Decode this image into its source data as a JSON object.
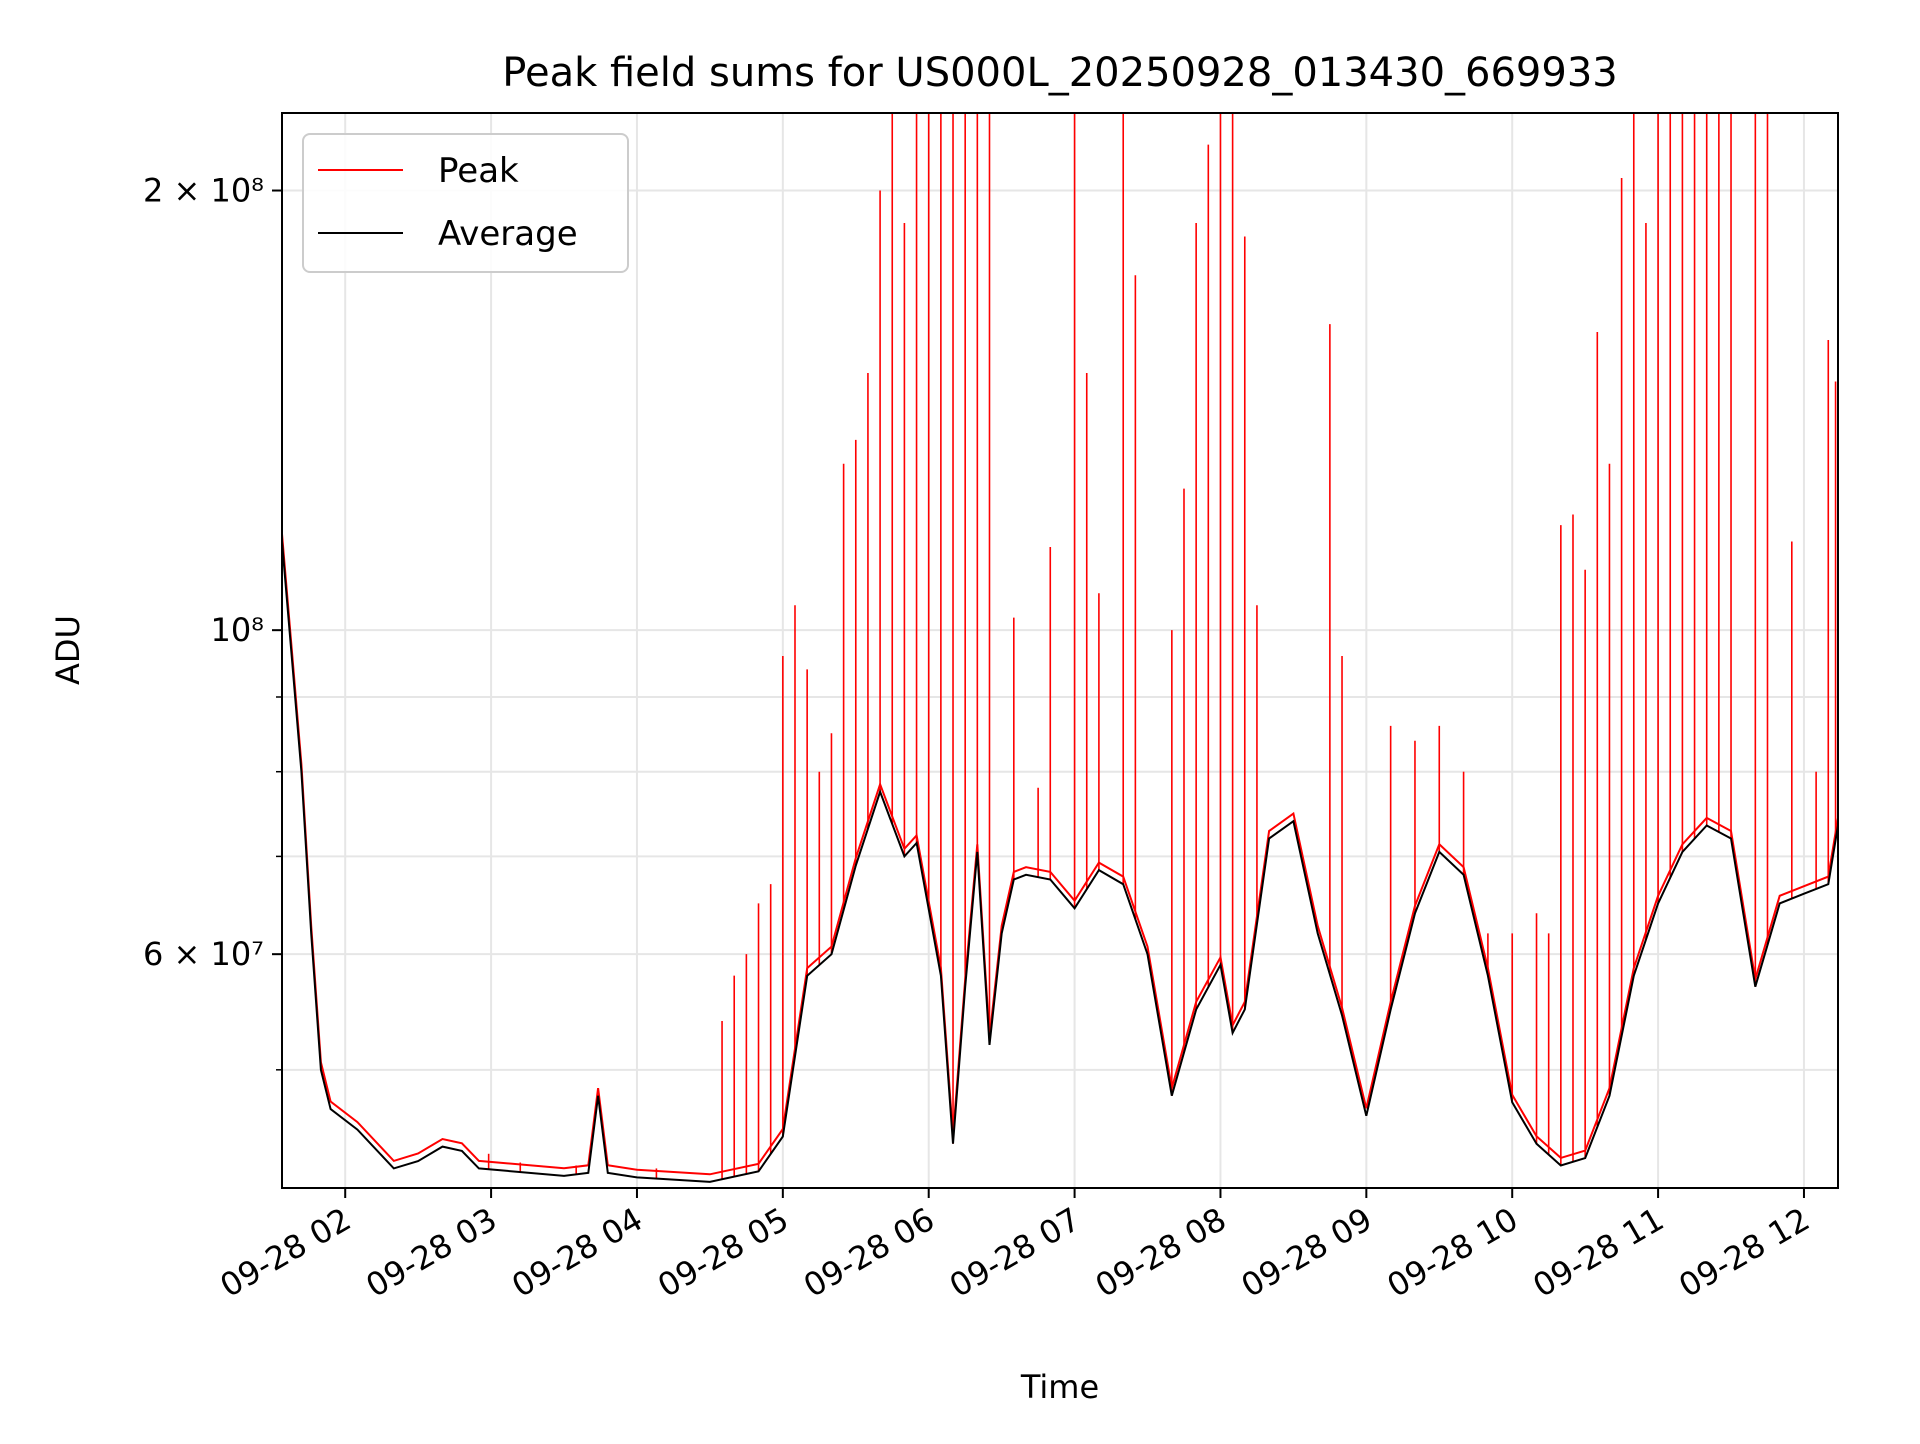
{
  "chart_data": {
    "type": "line",
    "title": "Peak field sums for US000L_20250928_013430_669933",
    "xlabel": "Time",
    "ylabel": "ADU",
    "y_scale": "log",
    "ylim": [
      41500000,
      226000000
    ],
    "xlim": [
      "2025-09-28 01:34",
      "2025-09-28 12:14"
    ],
    "grid": true,
    "legend_position": "top-left",
    "x_ticks": [
      "09-28 02",
      "09-28 03",
      "09-28 04",
      "09-28 05",
      "09-28 06",
      "09-28 07",
      "09-28 08",
      "09-28 09",
      "09-28 10",
      "09-28 11",
      "09-28 12"
    ],
    "x_tick_times": [
      "2025-09-28 02:00",
      "2025-09-28 03:00",
      "2025-09-28 04:00",
      "2025-09-28 05:00",
      "2025-09-28 06:00",
      "2025-09-28 07:00",
      "2025-09-28 08:00",
      "2025-09-28 09:00",
      "2025-09-28 10:00",
      "2025-09-28 11:00",
      "2025-09-28 12:00"
    ],
    "y_ticks": [
      {
        "value": 60000000,
        "label": "6 × 10⁷"
      },
      {
        "value": 100000000,
        "label": "10⁸"
      },
      {
        "value": 200000000,
        "label": "2 × 10⁸"
      }
    ],
    "y_minor_ticks": [
      50000000,
      70000000,
      80000000,
      90000000
    ],
    "colors": {
      "peak": "#ff0000",
      "average": "#000000",
      "grid": "#e6e6e6"
    },
    "series": [
      {
        "name": "Average",
        "key": "average",
        "points": [
          [
            "2025-09-28 01:34",
            115000000
          ],
          [
            "2025-09-28 01:38",
            96000000
          ],
          [
            "2025-09-28 01:42",
            80000000
          ],
          [
            "2025-09-28 01:46",
            62000000
          ],
          [
            "2025-09-28 01:50",
            50000000
          ],
          [
            "2025-09-28 01:54",
            47000000
          ],
          [
            "2025-09-28 02:05",
            45500000
          ],
          [
            "2025-09-28 02:20",
            42800000
          ],
          [
            "2025-09-28 02:30",
            43300000
          ],
          [
            "2025-09-28 02:40",
            44300000
          ],
          [
            "2025-09-28 02:48",
            44000000
          ],
          [
            "2025-09-28 02:55",
            42800000
          ],
          [
            "2025-09-28 03:30",
            42300000
          ],
          [
            "2025-09-28 03:40",
            42500000
          ],
          [
            "2025-09-28 03:44",
            48000000
          ],
          [
            "2025-09-28 03:48",
            42500000
          ],
          [
            "2025-09-28 04:00",
            42200000
          ],
          [
            "2025-09-28 04:30",
            41900000
          ],
          [
            "2025-09-28 04:50",
            42600000
          ],
          [
            "2025-09-28 05:00",
            45000000
          ],
          [
            "2025-09-28 05:10",
            58000000
          ],
          [
            "2025-09-28 05:20",
            60000000
          ],
          [
            "2025-09-28 05:30",
            69000000
          ],
          [
            "2025-09-28 05:40",
            77500000
          ],
          [
            "2025-09-28 05:50",
            70000000
          ],
          [
            "2025-09-28 05:55",
            71500000
          ],
          [
            "2025-09-28 06:05",
            58000000
          ],
          [
            "2025-09-28 06:10",
            44500000
          ],
          [
            "2025-09-28 06:15",
            57000000
          ],
          [
            "2025-09-28 06:20",
            70500000
          ],
          [
            "2025-09-28 06:25",
            52000000
          ],
          [
            "2025-09-28 06:30",
            62000000
          ],
          [
            "2025-09-28 06:35",
            67500000
          ],
          [
            "2025-09-28 06:40",
            68000000
          ],
          [
            "2025-09-28 06:50",
            67500000
          ],
          [
            "2025-09-28 07:00",
            64500000
          ],
          [
            "2025-09-28 07:10",
            68500000
          ],
          [
            "2025-09-28 07:20",
            67000000
          ],
          [
            "2025-09-28 07:30",
            60000000
          ],
          [
            "2025-09-28 07:40",
            48000000
          ],
          [
            "2025-09-28 07:50",
            55000000
          ],
          [
            "2025-09-28 08:00",
            59000000
          ],
          [
            "2025-09-28 08:05",
            53000000
          ],
          [
            "2025-09-28 08:10",
            55000000
          ],
          [
            "2025-09-28 08:20",
            72000000
          ],
          [
            "2025-09-28 08:30",
            74000000
          ],
          [
            "2025-09-28 08:40",
            62000000
          ],
          [
            "2025-09-28 08:50",
            54500000
          ],
          [
            "2025-09-28 09:00",
            46500000
          ],
          [
            "2025-09-28 09:10",
            55000000
          ],
          [
            "2025-09-28 09:20",
            64000000
          ],
          [
            "2025-09-28 09:30",
            70500000
          ],
          [
            "2025-09-28 09:40",
            68000000
          ],
          [
            "2025-09-28 09:50",
            58000000
          ],
          [
            "2025-09-28 10:00",
            47500000
          ],
          [
            "2025-09-28 10:10",
            44500000
          ],
          [
            "2025-09-28 10:20",
            43000000
          ],
          [
            "2025-09-28 10:30",
            43500000
          ],
          [
            "2025-09-28 10:40",
            48000000
          ],
          [
            "2025-09-28 10:50",
            58000000
          ],
          [
            "2025-09-28 11:00",
            65000000
          ],
          [
            "2025-09-28 11:10",
            70500000
          ],
          [
            "2025-09-28 11:20",
            73500000
          ],
          [
            "2025-09-28 11:30",
            72000000
          ],
          [
            "2025-09-28 11:40",
            57000000
          ],
          [
            "2025-09-28 11:50",
            65000000
          ],
          [
            "2025-09-28 12:00",
            66000000
          ],
          [
            "2025-09-28 12:10",
            67000000
          ],
          [
            "2025-09-28 12:14",
            73500000
          ]
        ]
      },
      {
        "name": "Peak",
        "key": "peak",
        "spikes": [
          [
            "2025-09-28 02:44",
            44200000
          ],
          [
            "2025-09-28 02:59",
            43800000
          ],
          [
            "2025-09-28 03:12",
            43200000
          ],
          [
            "2025-09-28 03:35",
            43000000
          ],
          [
            "2025-09-28 04:08",
            42800000
          ],
          [
            "2025-09-28 04:35",
            54000000
          ],
          [
            "2025-09-28 04:40",
            58000000
          ],
          [
            "2025-09-28 04:45",
            60000000
          ],
          [
            "2025-09-28 04:50",
            65000000
          ],
          [
            "2025-09-28 04:55",
            67000000
          ],
          [
            "2025-09-28 05:00",
            96000000
          ],
          [
            "2025-09-28 05:05",
            104000000
          ],
          [
            "2025-09-28 05:10",
            94000000
          ],
          [
            "2025-09-28 05:15",
            80000000
          ],
          [
            "2025-09-28 05:20",
            85000000
          ],
          [
            "2025-09-28 05:25",
            130000000
          ],
          [
            "2025-09-28 05:30",
            135000000
          ],
          [
            "2025-09-28 05:35",
            150000000
          ],
          [
            "2025-09-28 05:40",
            200000000
          ],
          [
            "2025-09-28 05:45",
            226000000
          ],
          [
            "2025-09-28 05:50",
            190000000
          ],
          [
            "2025-09-28 05:55",
            226000000
          ],
          [
            "2025-09-28 06:00",
            226000000
          ],
          [
            "2025-09-28 06:05",
            226000000
          ],
          [
            "2025-09-28 06:10",
            226000000
          ],
          [
            "2025-09-28 06:15",
            226000000
          ],
          [
            "2025-09-28 06:20",
            226000000
          ],
          [
            "2025-09-28 06:25",
            226000000
          ],
          [
            "2025-09-28 06:35",
            102000000
          ],
          [
            "2025-09-28 06:45",
            78000000
          ],
          [
            "2025-09-28 06:50",
            114000000
          ],
          [
            "2025-09-28 07:00",
            226000000
          ],
          [
            "2025-09-28 07:05",
            150000000
          ],
          [
            "2025-09-28 07:10",
            106000000
          ],
          [
            "2025-09-28 07:20",
            226000000
          ],
          [
            "2025-09-28 07:25",
            175000000
          ],
          [
            "2025-09-28 07:40",
            100000000
          ],
          [
            "2025-09-28 07:45",
            125000000
          ],
          [
            "2025-09-28 07:50",
            190000000
          ],
          [
            "2025-09-28 07:55",
            215000000
          ],
          [
            "2025-09-28 08:00",
            226000000
          ],
          [
            "2025-09-28 08:05",
            226000000
          ],
          [
            "2025-09-28 08:10",
            186000000
          ],
          [
            "2025-09-28 08:15",
            104000000
          ],
          [
            "2025-09-28 08:45",
            162000000
          ],
          [
            "2025-09-28 08:50",
            96000000
          ],
          [
            "2025-09-28 09:10",
            86000000
          ],
          [
            "2025-09-28 09:20",
            84000000
          ],
          [
            "2025-09-28 09:30",
            86000000
          ],
          [
            "2025-09-28 09:40",
            80000000
          ],
          [
            "2025-09-28 09:50",
            62000000
          ],
          [
            "2025-09-28 10:00",
            62000000
          ],
          [
            "2025-09-28 10:10",
            64000000
          ],
          [
            "2025-09-28 10:15",
            62000000
          ],
          [
            "2025-09-28 10:20",
            118000000
          ],
          [
            "2025-09-28 10:25",
            120000000
          ],
          [
            "2025-09-28 10:30",
            110000000
          ],
          [
            "2025-09-28 10:35",
            160000000
          ],
          [
            "2025-09-28 10:40",
            130000000
          ],
          [
            "2025-09-28 10:45",
            204000000
          ],
          [
            "2025-09-28 10:50",
            226000000
          ],
          [
            "2025-09-28 10:55",
            190000000
          ],
          [
            "2025-09-28 11:00",
            226000000
          ],
          [
            "2025-09-28 11:05",
            226000000
          ],
          [
            "2025-09-28 11:10",
            226000000
          ],
          [
            "2025-09-28 11:15",
            226000000
          ],
          [
            "2025-09-28 11:20",
            226000000
          ],
          [
            "2025-09-28 11:25",
            226000000
          ],
          [
            "2025-09-28 11:30",
            226000000
          ],
          [
            "2025-09-28 11:40",
            226000000
          ],
          [
            "2025-09-28 11:45",
            226000000
          ],
          [
            "2025-09-28 11:55",
            115000000
          ],
          [
            "2025-09-28 12:05",
            80000000
          ],
          [
            "2025-09-28 12:10",
            158000000
          ],
          [
            "2025-09-28 12:13",
            148000000
          ]
        ]
      }
    ]
  },
  "legend": {
    "items": [
      {
        "label": "Peak",
        "color": "#ff0000"
      },
      {
        "label": "Average",
        "color": "#000000"
      }
    ]
  }
}
